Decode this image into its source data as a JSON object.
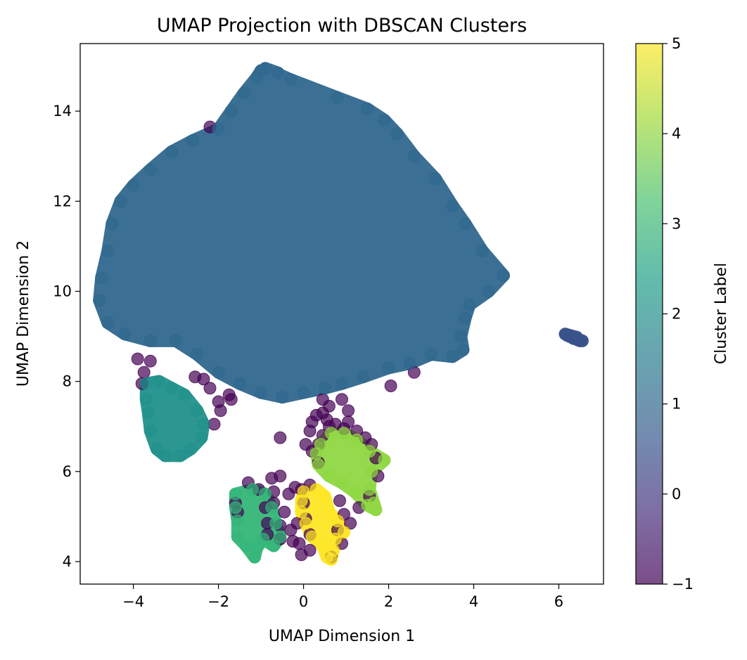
{
  "chart_data": {
    "type": "scatter",
    "title": "UMAP Projection with DBSCAN Clusters",
    "xlabel": "UMAP Dimension 1",
    "ylabel": "UMAP Dimension 2",
    "xlim": [
      -5.25,
      7.05
    ],
    "ylim": [
      3.5,
      15.5
    ],
    "xticks": [
      -4,
      -2,
      0,
      2,
      4,
      6
    ],
    "xtick_labels": [
      "−4",
      "−2",
      "0",
      "2",
      "4",
      "6"
    ],
    "yticks": [
      4,
      6,
      8,
      10,
      12,
      14
    ],
    "ytick_labels": [
      "4",
      "6",
      "8",
      "10",
      "12",
      "14"
    ],
    "grid": false,
    "marker_alpha": 0.7,
    "colormap": "viridis",
    "colorbar": {
      "label": "Cluster Label",
      "range": [
        -1,
        5
      ],
      "ticks": [
        -1,
        0,
        1,
        2,
        3,
        4,
        5
      ],
      "tick_labels": [
        "−1",
        "0",
        "1",
        "2",
        "3",
        "4",
        "5"
      ]
    },
    "clusters": [
      {
        "label": -1,
        "color": "#440154",
        "points": [
          [
            -2.2,
            13.65
          ],
          [
            -3.9,
            8.5
          ],
          [
            -3.75,
            8.2
          ],
          [
            -3.6,
            8.45
          ],
          [
            -3.8,
            7.95
          ],
          [
            -2.55,
            8.1
          ],
          [
            -2.35,
            8.05
          ],
          [
            -2.2,
            7.85
          ],
          [
            -2.0,
            7.55
          ],
          [
            -1.7,
            7.6
          ],
          [
            -1.95,
            7.35
          ],
          [
            -2.1,
            7.05
          ],
          [
            -1.75,
            7.7
          ],
          [
            -0.55,
            6.75
          ],
          [
            -1.3,
            5.75
          ],
          [
            -1.05,
            5.6
          ],
          [
            -0.7,
            5.55
          ],
          [
            -0.35,
            5.5
          ],
          [
            -0.05,
            5.6
          ],
          [
            0.15,
            5.7
          ],
          [
            -0.55,
            5.9
          ],
          [
            -0.75,
            5.85
          ],
          [
            0.05,
            6.6
          ],
          [
            0.15,
            6.9
          ],
          [
            0.35,
            6.2
          ],
          [
            0.2,
            6.45
          ],
          [
            0.45,
            6.8
          ],
          [
            0.55,
            7.15
          ],
          [
            0.45,
            7.3
          ],
          [
            0.6,
            7.45
          ],
          [
            0.75,
            7.05
          ],
          [
            0.95,
            6.95
          ],
          [
            1.05,
            7.1
          ],
          [
            1.05,
            7.35
          ],
          [
            0.9,
            7.6
          ],
          [
            1.25,
            6.9
          ],
          [
            1.45,
            6.75
          ],
          [
            1.6,
            6.6
          ],
          [
            1.7,
            6.3
          ],
          [
            1.75,
            5.9
          ],
          [
            1.55,
            5.45
          ],
          [
            1.3,
            5.2
          ],
          [
            0.95,
            5.05
          ],
          [
            0.8,
            4.7
          ],
          [
            0.9,
            4.4
          ],
          [
            0.65,
            4.1
          ],
          [
            0.15,
            4.25
          ],
          [
            -0.05,
            4.15
          ],
          [
            -0.25,
            4.45
          ],
          [
            -0.55,
            4.5
          ],
          [
            -0.85,
            4.6
          ],
          [
            -0.85,
            4.85
          ],
          [
            -0.9,
            5.2
          ],
          [
            -1.55,
            5.1
          ],
          [
            -1.6,
            5.3
          ],
          [
            -0.45,
            5.1
          ],
          [
            -0.55,
            4.8
          ],
          [
            0.0,
            5.3
          ],
          [
            -0.15,
            4.85
          ],
          [
            0.05,
            4.95
          ],
          [
            -0.3,
            4.7
          ],
          [
            2.05,
            7.9
          ],
          [
            2.6,
            8.2
          ],
          [
            0.3,
            7.25
          ],
          [
            0.45,
            7.6
          ],
          [
            0.2,
            7.1
          ],
          [
            0.35,
            6.6
          ],
          [
            0.6,
            7.0
          ],
          [
            0.85,
            5.35
          ],
          [
            1.1,
            4.85
          ],
          [
            -0.1,
            4.4
          ],
          [
            0.15,
            4.6
          ],
          [
            -0.2,
            5.65
          ],
          [
            -0.7,
            5.3
          ]
        ]
      },
      {
        "label": 0,
        "color": "#3b528b",
        "points": [
          [
            6.15,
            9.05
          ],
          [
            6.25,
            9.0
          ],
          [
            6.3,
            8.98
          ],
          [
            6.35,
            8.95
          ],
          [
            6.4,
            8.95
          ],
          [
            6.45,
            8.92
          ],
          [
            6.5,
            8.9
          ],
          [
            6.55,
            8.9
          ],
          [
            6.2,
            9.02
          ],
          [
            6.42,
            8.98
          ]
        ]
      },
      {
        "label": 1,
        "color": "#31688e",
        "points": [
          [
            -0.9,
            14.95
          ],
          [
            -0.3,
            14.7
          ],
          [
            0.8,
            14.3
          ],
          [
            1.5,
            14.05
          ],
          [
            1.9,
            13.8
          ],
          [
            2.2,
            13.5
          ],
          [
            2.6,
            13.0
          ],
          [
            3.1,
            12.5
          ],
          [
            3.5,
            11.9
          ],
          [
            3.8,
            11.5
          ],
          [
            4.2,
            10.9
          ],
          [
            4.7,
            10.35
          ],
          [
            4.35,
            10.0
          ],
          [
            3.9,
            9.7
          ],
          [
            3.8,
            9.4
          ],
          [
            3.7,
            9.0
          ],
          [
            3.75,
            8.7
          ],
          [
            3.5,
            8.55
          ],
          [
            3.0,
            8.6
          ],
          [
            2.5,
            8.4
          ],
          [
            2.0,
            8.3
          ],
          [
            1.4,
            8.1
          ],
          [
            0.9,
            7.95
          ],
          [
            0.5,
            7.85
          ],
          [
            0.0,
            7.75
          ],
          [
            -0.5,
            7.65
          ],
          [
            -1.0,
            7.75
          ],
          [
            -1.5,
            7.95
          ],
          [
            -2.0,
            8.2
          ],
          [
            -2.5,
            8.6
          ],
          [
            -3.0,
            8.9
          ],
          [
            -3.6,
            8.9
          ],
          [
            -4.2,
            9.05
          ],
          [
            -4.6,
            9.3
          ],
          [
            -4.8,
            9.8
          ],
          [
            -4.75,
            10.3
          ],
          [
            -4.6,
            10.9
          ],
          [
            -4.5,
            11.5
          ],
          [
            -4.3,
            12.0
          ],
          [
            -4.0,
            12.35
          ],
          [
            -3.6,
            12.7
          ],
          [
            -3.1,
            13.1
          ],
          [
            -2.6,
            13.35
          ],
          [
            -2.0,
            13.6
          ],
          [
            -1.7,
            14.0
          ],
          [
            -1.4,
            14.4
          ],
          [
            -1.1,
            14.75
          ],
          [
            -1.0,
            14.9
          ],
          [
            -0.6,
            14.85
          ]
        ]
      },
      {
        "label": 2,
        "color": "#21918c",
        "points": [
          [
            -3.7,
            7.95
          ],
          [
            -3.4,
            8.0
          ],
          [
            -3.1,
            7.85
          ],
          [
            -2.8,
            7.7
          ],
          [
            -2.5,
            7.35
          ],
          [
            -2.35,
            7.05
          ],
          [
            -2.4,
            6.75
          ],
          [
            -2.65,
            6.5
          ],
          [
            -2.9,
            6.35
          ],
          [
            -3.25,
            6.35
          ],
          [
            -3.45,
            6.5
          ],
          [
            -3.6,
            6.9
          ],
          [
            -3.65,
            7.3
          ],
          [
            -3.7,
            7.6
          ]
        ]
      },
      {
        "label": 3,
        "color": "#35b779",
        "points": [
          [
            -1.6,
            5.5
          ],
          [
            -1.2,
            5.6
          ],
          [
            -0.9,
            5.5
          ],
          [
            -0.75,
            5.2
          ],
          [
            -0.65,
            4.85
          ],
          [
            -0.55,
            4.55
          ],
          [
            -0.7,
            4.35
          ],
          [
            -0.95,
            4.5
          ],
          [
            -1.1,
            4.3
          ],
          [
            -1.15,
            4.1
          ],
          [
            -1.35,
            4.35
          ],
          [
            -1.55,
            4.55
          ],
          [
            -1.55,
            4.9
          ],
          [
            -1.6,
            5.2
          ]
        ]
      },
      {
        "label": 4,
        "color": "#90d743",
        "points": [
          [
            0.4,
            6.6
          ],
          [
            0.65,
            6.85
          ],
          [
            0.95,
            6.85
          ],
          [
            1.25,
            6.7
          ],
          [
            1.55,
            6.45
          ],
          [
            1.9,
            6.25
          ],
          [
            1.6,
            6.0
          ],
          [
            1.55,
            5.6
          ],
          [
            1.65,
            5.3
          ],
          [
            1.7,
            5.15
          ],
          [
            1.5,
            5.25
          ],
          [
            1.2,
            5.55
          ],
          [
            0.9,
            5.75
          ],
          [
            0.6,
            5.9
          ],
          [
            0.35,
            6.15
          ],
          [
            0.3,
            6.4
          ]
        ]
      },
      {
        "label": 5,
        "color": "#fde725",
        "points": [
          [
            0.0,
            5.55
          ],
          [
            0.3,
            5.6
          ],
          [
            0.5,
            5.45
          ],
          [
            0.6,
            5.1
          ],
          [
            0.8,
            4.9
          ],
          [
            0.95,
            4.65
          ],
          [
            0.75,
            4.5
          ],
          [
            0.7,
            4.25
          ],
          [
            0.65,
            4.05
          ],
          [
            0.55,
            4.1
          ],
          [
            0.45,
            4.35
          ],
          [
            0.2,
            4.55
          ],
          [
            0.05,
            4.85
          ],
          [
            -0.05,
            5.1
          ],
          [
            -0.05,
            5.35
          ]
        ]
      }
    ]
  }
}
